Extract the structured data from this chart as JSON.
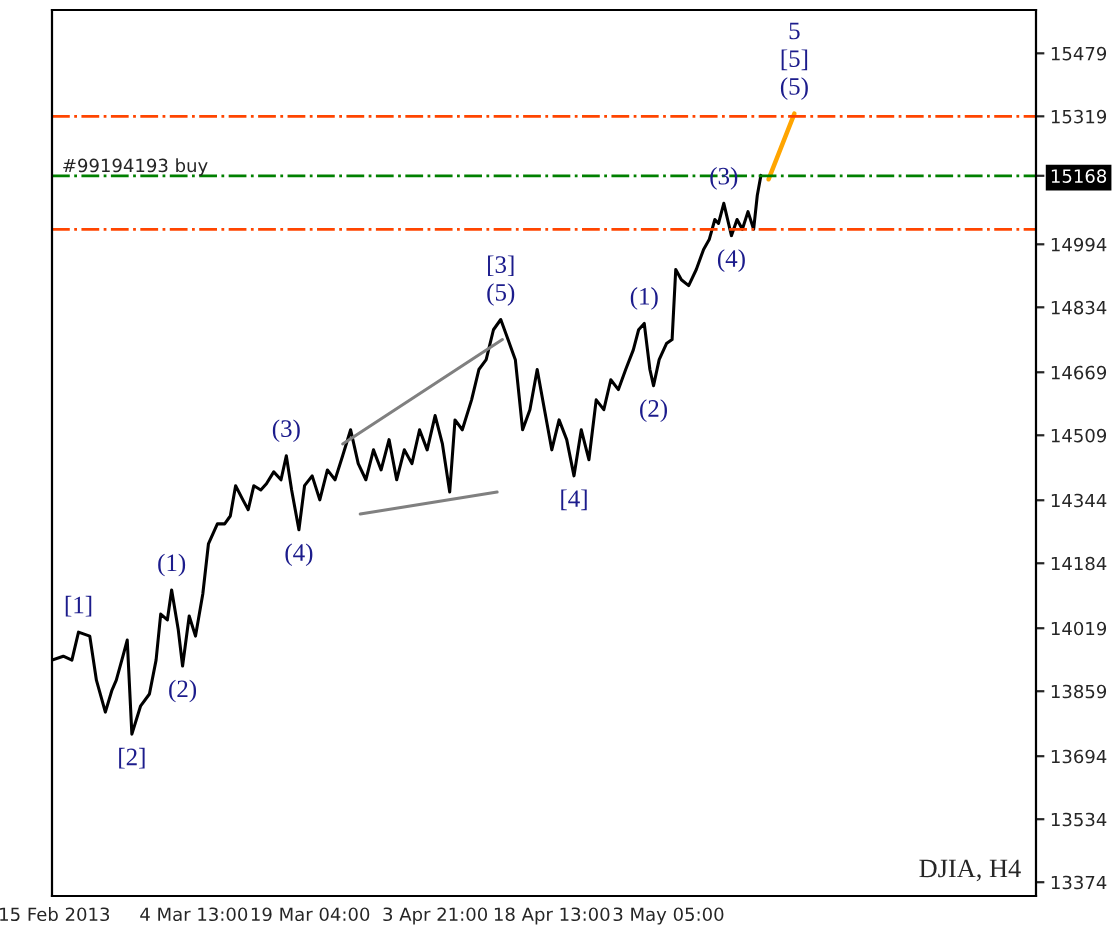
{
  "chart_data": {
    "type": "line",
    "annotations": [
      {
        "text": "5",
        "x": "2013-05-19T01:00",
        "y": 15326
      },
      {
        "text": "[5]",
        "x": "2013-05-19T01:00",
        "y": 15326
      },
      {
        "text": "(5)",
        "x": "2013-05-19T01:00",
        "y": 15326
      },
      {
        "text": "(3)",
        "x": "2013-05-10T04:00",
        "y": 15098
      },
      {
        "text": "(4)",
        "x": "2013-05-11T03:00",
        "y": 15016
      },
      {
        "text": "(1)",
        "x": "2013-04-30T04:00",
        "y": 14793
      },
      {
        "text": "(2)",
        "x": "2013-05-01T08:00",
        "y": 14635
      },
      {
        "text": "[3]",
        "x": "2013-04-12T03:00",
        "y": 14803
      },
      {
        "text": "(5)",
        "x": "2013-04-12T03:00",
        "y": 14803
      },
      {
        "text": "[4]",
        "x": "2013-04-21T08:00",
        "y": 14406
      },
      {
        "text": "(3)",
        "x": "2013-03-16T04:00",
        "y": 14457
      },
      {
        "text": "(4)",
        "x": "2013-03-17T18:00",
        "y": 14269
      },
      {
        "text": "(1)",
        "x": "2013-03-01T18:00",
        "y": 14116
      },
      {
        "text": "(2)",
        "x": "2013-03-03T03:00",
        "y": 13923
      },
      {
        "text": "[1]",
        "x": "2013-02-18T01:00",
        "y": 14009
      },
      {
        "text": "[2]",
        "x": "2013-02-24T18:00",
        "y": 13750
      },
      "DJIA, H4"
    ],
    "series": [
      {
        "color": "#000000",
        "x": [
          "2013-02-14T17:00",
          "2013-02-16T03:00",
          "2013-02-17T05:00",
          "2013-02-18T01:00",
          "2013-02-19T11:00",
          "2013-02-20T07:00",
          "2013-02-21T10:00",
          "2013-02-22T06:00",
          "2013-02-22T19:00",
          "2013-02-23T15:00",
          "2013-02-24T04:00",
          "2013-02-24T18:00",
          "2013-02-25T20:00",
          "2013-02-26T23:00",
          "2013-02-27T19:00",
          "2013-02-28T09:00",
          "2013-03-01T05:00",
          "2013-03-01T18:00",
          "2013-03-02T14:00",
          "2013-03-03T03:00",
          "2013-03-03T23:00",
          "2013-03-04T18:00",
          "2013-03-05T16:00",
          "2013-03-06T09:00",
          "2013-03-07T12:00",
          "2013-03-08T10:00",
          "2013-03-09T03:00",
          "2013-03-09T19:00",
          "2013-03-10T17:00",
          "2013-03-11T09:00",
          "2013-03-12T02:00",
          "2013-03-12T23:00",
          "2013-03-13T16:00",
          "2013-03-14T14:00",
          "2013-03-15T12:00",
          "2013-03-16T04:00",
          "2013-03-16T20:00",
          "2013-03-17T18:00",
          "2013-03-18T11:00",
          "2013-03-19T10:00",
          "2013-03-20T09:00",
          "2013-03-21T08:00",
          "2013-03-22T07:00",
          "2013-03-23T06:00",
          "2013-03-24T06:00",
          "2013-03-25T05:00",
          "2013-03-26T04:00",
          "2013-03-27T03:00",
          "2013-03-28T02:00",
          "2013-03-29T02:00",
          "2013-03-30T01:00",
          "2013-03-31T00:00",
          "2013-03-31T23:00",
          "2013-04-01T22:00",
          "2013-04-02T21:00",
          "2013-04-03T21:00",
          "2013-04-04T19:00",
          "2013-04-05T17:00",
          "2013-04-06T09:00",
          "2013-04-07T07:00",
          "2013-04-08T11:00",
          "2013-04-09T09:00",
          "2013-04-10T07:00",
          "2013-04-11T05:00",
          "2013-04-12T03:00",
          "2013-04-13T01:00",
          "2013-04-13T23:00",
          "2013-04-14T21:00",
          "2013-04-15T19:00",
          "2013-04-16T17:00",
          "2013-04-17T15:00",
          "2013-04-18T13:00",
          "2013-04-19T11:00",
          "2013-04-20T10:00",
          "2013-04-21T08:00",
          "2013-04-22T06:00",
          "2013-04-23T05:00",
          "2013-04-24T03:00",
          "2013-04-25T02:00",
          "2013-04-25T23:00",
          "2013-04-26T22:00",
          "2013-04-27T20:00",
          "2013-04-28T19:00",
          "2013-04-29T11:00",
          "2013-04-30T04:00",
          "2013-04-30T21:00",
          "2013-05-01T08:00",
          "2013-05-02T01:00",
          "2013-05-02T23:00",
          "2013-05-03T16:00",
          "2013-05-04T03:00",
          "2013-05-04T20:00",
          "2013-05-05T18:00",
          "2013-05-06T17:00",
          "2013-05-07T15:00",
          "2013-05-08T08:00",
          "2013-05-09T01:00",
          "2013-05-09T12:00",
          "2013-05-10T04:00",
          "2013-05-11T03:00",
          "2013-05-11T20:00",
          "2013-05-12T12:00",
          "2013-05-13T05:00",
          "2013-05-13T22:00",
          "2013-05-14T09:00",
          "2013-05-14T20:00"
        ],
        "values": [
          13938,
          13948,
          13938,
          14009,
          13999,
          13887,
          13806,
          13862,
          13887,
          13948,
          13989,
          13750,
          13821,
          13852,
          13938,
          14055,
          14040,
          14116,
          14015,
          13923,
          14050,
          13999,
          14106,
          14233,
          14284,
          14284,
          14304,
          14381,
          14345,
          14320,
          14381,
          14370,
          14386,
          14416,
          14396,
          14457,
          14370,
          14269,
          14381,
          14406,
          14345,
          14421,
          14396,
          14457,
          14523,
          14437,
          14396,
          14472,
          14421,
          14498,
          14396,
          14472,
          14437,
          14523,
          14472,
          14559,
          14487,
          14365,
          14548,
          14523,
          14599,
          14676,
          14701,
          14777,
          14803,
          14752,
          14701,
          14523,
          14574,
          14676,
          14574,
          14472,
          14548,
          14498,
          14406,
          14523,
          14447,
          14599,
          14574,
          14650,
          14625,
          14676,
          14726,
          14777,
          14793,
          14676,
          14635,
          14701,
          14742,
          14752,
          14930,
          14904,
          14889,
          14930,
          14981,
          15006,
          15057,
          15047,
          15098,
          15016,
          15057,
          15032,
          15077,
          15032,
          15118,
          15169
        ]
      },
      {
        "color": "#ffa500",
        "x": [
          "2013-05-15T19:00",
          "2013-05-19T01:00"
        ],
        "values": [
          15159,
          15326
        ]
      },
      {
        "color": "#808080",
        "x": [
          "2013-03-23T06:00",
          "2013-04-12T08:00"
        ],
        "values": [
          14487,
          14752
        ]
      },
      {
        "color": "#808080",
        "x": [
          "2013-03-25T11:00",
          "2013-04-11T16:00"
        ],
        "values": [
          14309,
          14365
        ]
      }
    ],
    "xlim": [
      "2013-02-14T17:00",
      "2013-06-18T10:00"
    ],
    "xticks": [
      {
        "value": "2013-02-15T00:00",
        "label": "15 Feb 2013"
      },
      {
        "value": "2013-03-04T13:00",
        "label": "4 Mar 13:00"
      },
      {
        "value": "2013-03-19T04:00",
        "label": "19 Mar 04:00"
      },
      {
        "value": "2013-04-03T21:00",
        "label": "3 Apr 21:00"
      },
      {
        "value": "2013-04-18T13:00",
        "label": "18 Apr 13:00"
      },
      {
        "value": "2013-05-03T05:00",
        "label": "3 May 05:00"
      }
    ],
    "ylim": [
      13339,
      15589
    ],
    "yticks": [
      13374,
      13534,
      13694,
      13859,
      14019,
      14184,
      14344,
      14509,
      14669,
      14834,
      14994,
      15168,
      15319,
      15479
    ],
    "ref_lines": [
      {
        "axis": "y",
        "value": 15319,
        "color": "#ff4500",
        "line_style": "dashdot"
      },
      {
        "axis": "y",
        "value": 15168,
        "label": "#99194193 buy",
        "color": "#008000",
        "line_style": "dashdot"
      },
      {
        "axis": "y",
        "value": 15032,
        "color": "#ff4500",
        "line_style": "dashdot"
      }
    ],
    "grid": false,
    "legend": false,
    "line_style": "solid",
    "marker": "none"
  }
}
